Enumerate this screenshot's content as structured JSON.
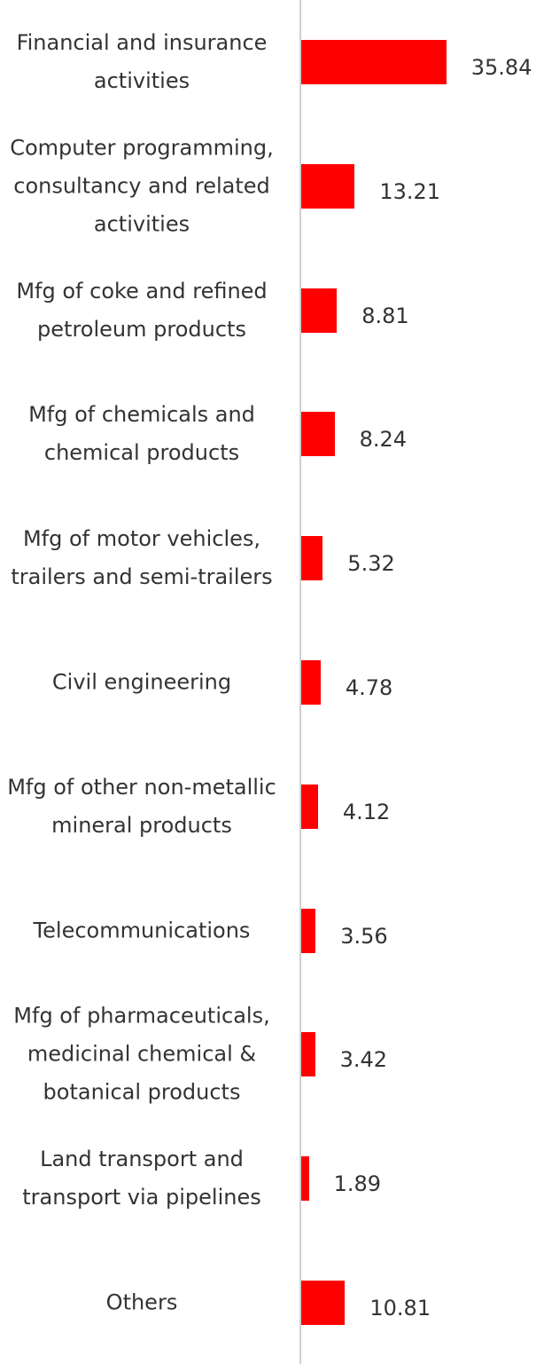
{
  "chart_data": {
    "type": "bar",
    "orientation": "horizontal",
    "categories": [
      "Financial and insurance\nactivities",
      "Computer programming,\nconsultancy and related\nactivities",
      "Mfg of coke and refined\npetroleum products",
      "Mfg of chemicals and\nchemical products",
      "Mfg of motor vehicles,\ntrailers and semi-trailers",
      "Civil engineering",
      "Mfg of other non-metallic\nmineral products",
      "Telecommunications",
      "Mfg of pharmaceuticals,\nmedicinal chemical &\nbotanical products",
      "Land transport and\ntransport via pipelines",
      "Others"
    ],
    "values": [
      35.84,
      13.21,
      8.81,
      8.24,
      5.32,
      4.78,
      4.12,
      3.56,
      3.42,
      1.89,
      10.81
    ],
    "color": "#ff0000",
    "xlim": [
      0,
      58
    ]
  }
}
